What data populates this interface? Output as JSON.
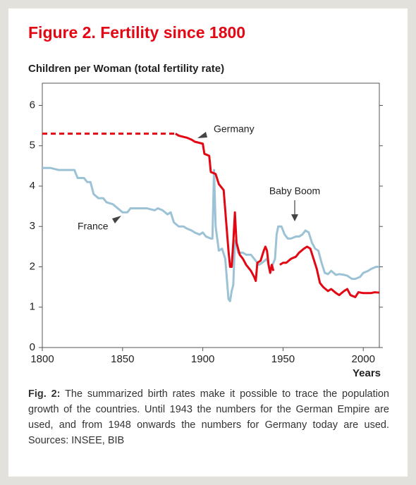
{
  "chart_data": {
    "type": "line",
    "title": "Figure 2. Fertility since 1800",
    "y_label": "Children per Woman (total fertility rate)",
    "x_label": "Years",
    "xlim": [
      1800,
      2010
    ],
    "xticks": [
      1800,
      1850,
      1900,
      1950,
      2000
    ],
    "ylim": [
      0,
      6.55
    ],
    "yticks": [
      0,
      1,
      2,
      3,
      4,
      5,
      6
    ],
    "grid": false,
    "series": [
      {
        "name": "Germany",
        "color": "#e30613",
        "dash_until": 1883,
        "x": [
          1800,
          1883,
          1885,
          1890,
          1893,
          1895,
          1900,
          1901,
          1904,
          1905,
          1908,
          1910,
          1913,
          1915,
          1916,
          1917,
          1918,
          1919,
          1920,
          1921,
          1923,
          1925,
          1927,
          1930,
          1932,
          1933,
          1934,
          1936,
          1938,
          1939,
          1940,
          1941,
          1942,
          1943,
          1944,
          1946,
          1948,
          1950,
          1952,
          1955,
          1958,
          1960,
          1963,
          1965,
          1967,
          1969,
          1971,
          1973,
          1975,
          1978,
          1980,
          1983,
          1985,
          1988,
          1990,
          1992,
          1995,
          1997,
          2000,
          2002,
          2005,
          2007,
          2010
        ],
        "values": [
          5.3,
          5.3,
          5.25,
          5.2,
          5.15,
          5.1,
          5.05,
          4.8,
          4.75,
          4.35,
          4.3,
          4.05,
          3.9,
          2.9,
          2.4,
          2.0,
          2.0,
          2.6,
          3.35,
          2.6,
          2.3,
          2.2,
          2.05,
          1.9,
          1.75,
          1.65,
          2.1,
          2.15,
          2.4,
          2.5,
          2.4,
          2.05,
          1.85,
          2.05,
          1.9,
          null,
          2.05,
          2.1,
          2.1,
          2.2,
          2.25,
          2.35,
          2.45,
          2.5,
          2.45,
          2.2,
          1.95,
          1.6,
          1.5,
          1.4,
          1.45,
          1.35,
          1.3,
          1.4,
          1.45,
          1.3,
          1.25,
          1.37,
          1.35,
          1.35,
          1.35,
          1.37,
          1.36
        ]
      },
      {
        "name": "France",
        "color": "#9cc2d6",
        "x": [
          1800,
          1805,
          1810,
          1820,
          1822,
          1826,
          1828,
          1830,
          1832,
          1835,
          1838,
          1840,
          1844,
          1847,
          1850,
          1853,
          1855,
          1860,
          1865,
          1870,
          1872,
          1875,
          1878,
          1880,
          1882,
          1885,
          1888,
          1890,
          1893,
          1895,
          1898,
          1900,
          1902,
          1905,
          1906,
          1907,
          1908,
          1910,
          1912,
          1914,
          1916,
          1917,
          1918,
          1919,
          1920,
          1921,
          1922,
          1925,
          1927,
          1930,
          1933,
          1935,
          1937,
          1940,
          1942,
          1943,
          1945,
          1946,
          1947,
          1949,
          1951,
          1953,
          1955,
          1958,
          1960,
          1962,
          1964,
          1966,
          1968,
          1970,
          1972,
          1974,
          1976,
          1978,
          1980,
          1983,
          1985,
          1988,
          1990,
          1993,
          1995,
          1998,
          2000,
          2003,
          2005,
          2008,
          2010
        ],
        "values": [
          4.45,
          4.45,
          4.4,
          4.4,
          4.2,
          4.2,
          4.1,
          4.1,
          3.8,
          3.7,
          3.7,
          3.6,
          3.55,
          3.45,
          3.35,
          3.35,
          3.45,
          3.45,
          3.45,
          3.4,
          3.45,
          3.4,
          3.3,
          3.35,
          3.1,
          3.0,
          3.0,
          2.95,
          2.9,
          2.85,
          2.8,
          2.85,
          2.75,
          2.7,
          2.7,
          4.4,
          3.0,
          2.4,
          2.45,
          2.2,
          1.2,
          1.15,
          1.4,
          1.55,
          2.65,
          2.55,
          2.35,
          2.35,
          2.3,
          2.3,
          2.15,
          2.05,
          2.1,
          2.2,
          1.85,
          2.0,
          2.2,
          2.8,
          3.0,
          3.0,
          2.8,
          2.7,
          2.7,
          2.75,
          2.75,
          2.8,
          2.9,
          2.85,
          2.6,
          2.45,
          2.4,
          2.1,
          1.85,
          1.82,
          1.9,
          1.8,
          1.82,
          1.8,
          1.78,
          1.7,
          1.7,
          1.75,
          1.85,
          1.9,
          1.95,
          2.0,
          2.0
        ]
      }
    ],
    "annotation": "Baby Boom",
    "caption_label": "Fig. 2:",
    "caption": "The summarized birth rates make it possible to trace the population growth of the countries. Until 1943 the numbers for the German Empire are used, and from 1948 onwards the numbers for Germany today are used. Sources: INSEE, BIB"
  }
}
